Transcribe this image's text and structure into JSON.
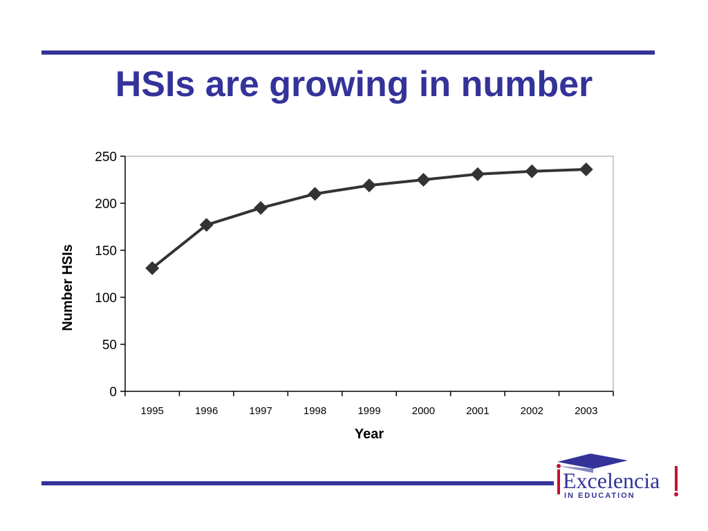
{
  "slide": {
    "title": "HSIs are growing in number",
    "accent_color": "#333399",
    "logo_brand_red": "#c41230",
    "logo": {
      "name": "Excelencia",
      "tagline": "IN EDUCATION"
    }
  },
  "chart_data": {
    "type": "line",
    "title": "",
    "xlabel": "Year",
    "ylabel": "Number HSIs",
    "categories": [
      "1995",
      "1996",
      "1997",
      "1998",
      "1999",
      "2000",
      "2001",
      "2002",
      "2003"
    ],
    "series": [
      {
        "values": [
          131,
          177,
          195,
          210,
          219,
          225,
          231,
          234,
          236
        ]
      }
    ],
    "ylim": [
      0,
      250
    ],
    "yticks": [
      0,
      50,
      100,
      150,
      200,
      250
    ],
    "marker": "diamond",
    "line_color": "#333333",
    "grid": false,
    "legend": "none"
  }
}
